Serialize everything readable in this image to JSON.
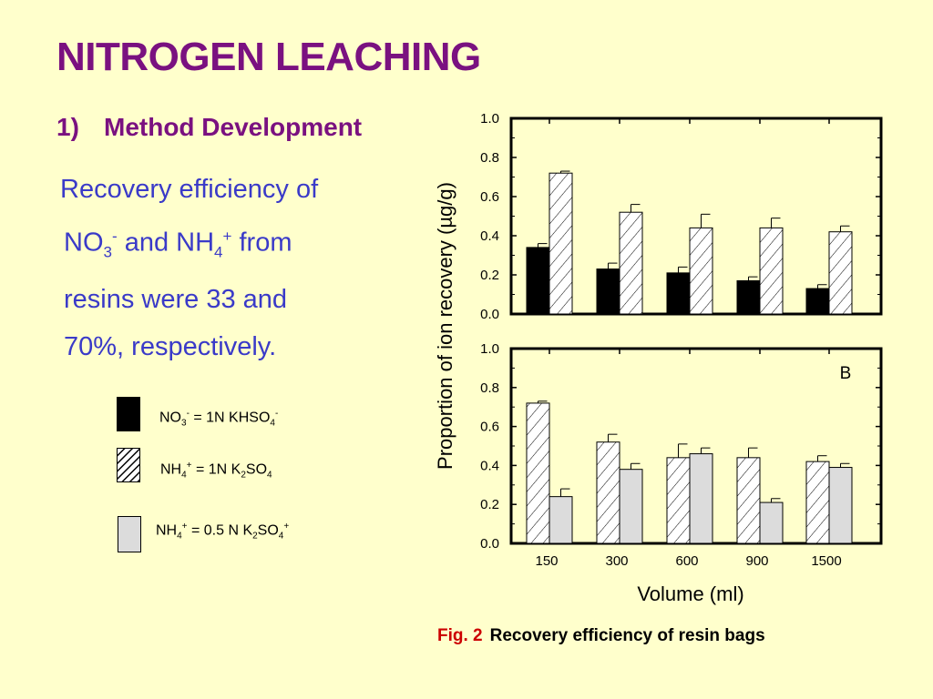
{
  "slide": {
    "title": "NITROGEN LEACHING",
    "subtitle_num": "1)",
    "subtitle": "Method Development",
    "para": {
      "l1": "Recovery efficiency of",
      "l2_a": "NO",
      "l2_sub1": "3",
      "l2_sup1": "-",
      "l2_b": " and NH",
      "l2_sub2": "4",
      "l2_sup2": "+",
      "l2_c": " from",
      "l3": "resins were 33 and",
      "l4": "70%, respectively."
    },
    "caption_fig": "Fig. 2",
    "caption_text": "Recovery efficiency of resin bags"
  },
  "legend": [
    {
      "pre": "NO",
      "sub1": "3",
      "sup1": "-",
      "mid": " = 1N KHSO",
      "sub2": "4",
      "sup2": "-",
      "end": "",
      "fill": "black"
    },
    {
      "pre": "NH",
      "sub1": "4",
      "sup1": "+",
      "mid": " = 1N K",
      "sub2": "2",
      "sup2": "",
      "end": "SO",
      "sub3": "4",
      "fill": "hatch"
    },
    {
      "pre": "NH",
      "sub1": "4",
      "sup1": "+",
      "mid": " = 0.5 N K",
      "sub2": "2",
      "sup2": "",
      "end": "SO",
      "sub3": "4",
      "sup3": "+",
      "fill": "gray"
    }
  ],
  "chart_data": {
    "type": "bar",
    "ylabel": "Proportion of ion recovery (µg/g)",
    "xlabel": "Volume (ml)",
    "categories": [
      "150",
      "300",
      "600",
      "900",
      "1500"
    ],
    "ylim": [
      0,
      1.0
    ],
    "yticks": [
      "0.0",
      "0.2",
      "0.4",
      "0.6",
      "0.8",
      "1.0"
    ],
    "panels": [
      {
        "label": "",
        "series": [
          {
            "name": "NO3- = 1N KHSO4-",
            "fill": "black",
            "values": [
              0.34,
              0.23,
              0.21,
              0.17,
              0.13
            ],
            "errors": [
              0.02,
              0.03,
              0.03,
              0.02,
              0.02
            ]
          },
          {
            "name": "NH4+ = 1N K2SO4",
            "fill": "hatch",
            "values": [
              0.72,
              0.52,
              0.44,
              0.44,
              0.42
            ],
            "errors": [
              0.01,
              0.04,
              0.07,
              0.05,
              0.03
            ]
          }
        ]
      },
      {
        "label": "B",
        "series": [
          {
            "name": "NH4+ = 1N K2SO4",
            "fill": "hatch",
            "values": [
              0.72,
              0.52,
              0.44,
              0.44,
              0.42
            ],
            "errors": [
              0.01,
              0.04,
              0.07,
              0.05,
              0.03
            ]
          },
          {
            "name": "NH4+ = 0.5 N K2SO4+",
            "fill": "gray",
            "values": [
              0.24,
              0.38,
              0.46,
              0.21,
              0.39
            ],
            "errors": [
              0.04,
              0.03,
              0.03,
              0.02,
              0.02
            ]
          }
        ]
      }
    ]
  }
}
